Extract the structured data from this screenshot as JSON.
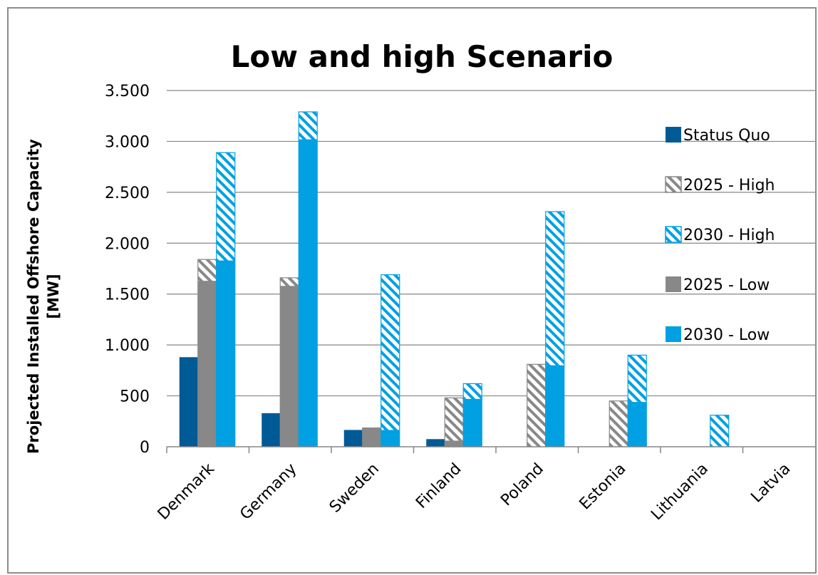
{
  "chart_data": {
    "type": "bar",
    "title": "Low and high Scenario",
    "xlabel": "",
    "ylabel": "Projected Installed Offshore Capacity [MW]",
    "ylabel_lines": [
      "Projected Installed Offshore Capacity",
      "[MW]"
    ],
    "ylim": [
      0,
      3500
    ],
    "yticks": [
      0,
      500,
      1000,
      1500,
      2000,
      2500,
      3000,
      3500
    ],
    "ytick_labels": [
      "0",
      "500",
      "1.000",
      "1.500",
      "2.000",
      "2.500",
      "3.000",
      "3.500"
    ],
    "grid": true,
    "legend_position": "right",
    "categories": [
      "Denmark",
      "Germany",
      "Sweden",
      "Finland",
      "Poland",
      "Estonia",
      "Lithuania",
      "Latvia"
    ],
    "series": [
      {
        "name": "Status Quo",
        "values": [
          880,
          330,
          165,
          75,
          0,
          0,
          0,
          0
        ],
        "color": "#005a96",
        "pattern": "solid"
      },
      {
        "name": "2025 - High",
        "values": [
          1840,
          1660,
          185,
          480,
          810,
          450,
          0,
          0
        ],
        "color": "#888888",
        "pattern": "hatched"
      },
      {
        "name": "2030 - High",
        "values": [
          2890,
          3290,
          1690,
          620,
          2310,
          900,
          310,
          0
        ],
        "color": "#00a0e3",
        "pattern": "hatched"
      },
      {
        "name": "2025 - Low",
        "values": [
          1630,
          1580,
          185,
          60,
          0,
          0,
          0,
          0
        ],
        "color": "#888888",
        "pattern": "solid"
      },
      {
        "name": "2030 - Low",
        "values": [
          1830,
          3020,
          165,
          470,
          800,
          440,
          0,
          0
        ],
        "color": "#00a0e3",
        "pattern": "solid"
      }
    ],
    "colors": {
      "status_quo": "#005a96",
      "grey": "#888888",
      "light_blue": "#00a0e3",
      "gridline": "#868686"
    }
  }
}
